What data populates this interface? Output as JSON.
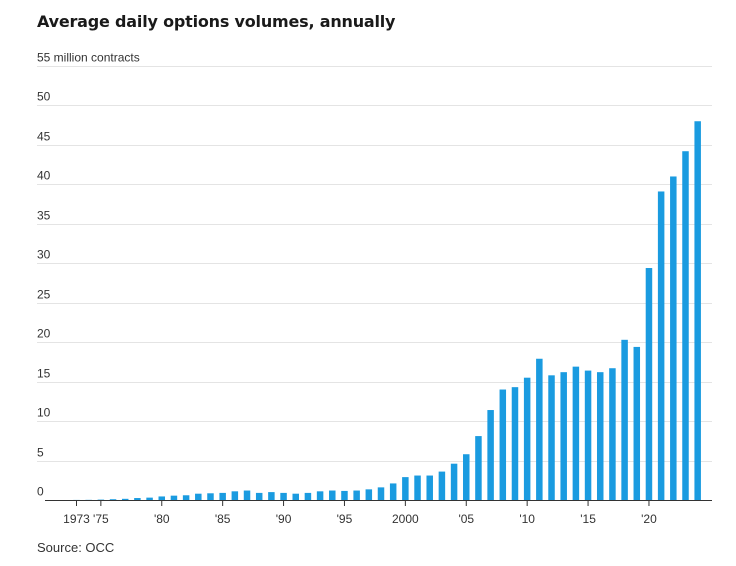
{
  "title": "Average daily options volumes, annually",
  "source": "Source: OCC",
  "chart_data": {
    "type": "bar",
    "title": "Average daily options volumes, annually",
    "ylabel": "55 million contracts",
    "ylim": [
      0,
      55
    ],
    "y_ticks": [
      {
        "value": 55,
        "label": "55 million contracts"
      },
      {
        "value": 50,
        "label": "50"
      },
      {
        "value": 45,
        "label": "45"
      },
      {
        "value": 40,
        "label": "40"
      },
      {
        "value": 35,
        "label": "35"
      },
      {
        "value": 30,
        "label": "30"
      },
      {
        "value": 25,
        "label": "25"
      },
      {
        "value": 20,
        "label": "20"
      },
      {
        "value": 15,
        "label": "15"
      },
      {
        "value": 10,
        "label": "10"
      },
      {
        "value": 5,
        "label": "5"
      },
      {
        "value": 0,
        "label": "0"
      }
    ],
    "x_ticks": [
      {
        "year": 1973,
        "label": "1973"
      },
      {
        "year": 1975,
        "label": "'75"
      },
      {
        "year": 1980,
        "label": "'80"
      },
      {
        "year": 1985,
        "label": "'85"
      },
      {
        "year": 1990,
        "label": "'90"
      },
      {
        "year": 1995,
        "label": "'95"
      },
      {
        "year": 2000,
        "label": "2000"
      },
      {
        "year": 2005,
        "label": "'05"
      },
      {
        "year": 2010,
        "label": "'10"
      },
      {
        "year": 2015,
        "label": "'15"
      },
      {
        "year": 2020,
        "label": "'20"
      }
    ],
    "categories": [
      1973,
      1974,
      1975,
      1976,
      1977,
      1978,
      1979,
      1980,
      1981,
      1982,
      1983,
      1984,
      1985,
      1986,
      1987,
      1988,
      1989,
      1990,
      1991,
      1992,
      1993,
      1994,
      1995,
      1996,
      1997,
      1998,
      1999,
      2000,
      2001,
      2002,
      2003,
      2004,
      2005,
      2006,
      2007,
      2008,
      2009,
      2010,
      2011,
      2012,
      2013,
      2014,
      2015,
      2016,
      2017,
      2018,
      2019,
      2020,
      2021,
      2022,
      2023,
      2024
    ],
    "values": [
      0.01,
      0.02,
      0.05,
      0.1,
      0.15,
      0.25,
      0.3,
      0.45,
      0.55,
      0.6,
      0.8,
      0.85,
      0.9,
      1.1,
      1.2,
      0.9,
      1.0,
      0.9,
      0.8,
      0.9,
      1.1,
      1.2,
      1.15,
      1.2,
      1.35,
      1.6,
      2.1,
      2.9,
      3.1,
      3.1,
      3.6,
      4.6,
      5.8,
      8.1,
      11.4,
      14.0,
      14.3,
      15.5,
      17.9,
      15.8,
      16.2,
      16.9,
      16.4,
      16.2,
      16.7,
      20.3,
      19.4,
      29.4,
      39.1,
      41.0,
      44.2,
      48.0
    ],
    "bar_color": "#1a9be0",
    "grid": true
  }
}
